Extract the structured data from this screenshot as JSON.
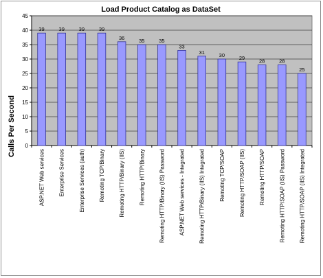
{
  "chart_data": {
    "type": "bar",
    "title": "Load Product Catalog as DataSet",
    "xlabel": "",
    "ylabel": "Calls Per Second",
    "ylim": [
      0,
      45
    ],
    "yticks": [
      0,
      5,
      10,
      15,
      20,
      25,
      30,
      35,
      40,
      45
    ],
    "grid": true,
    "legend": "none",
    "categories": [
      "ASP.NET Web services",
      "Enterprise Services",
      "Enterprise Services (auth)",
      "Remoting TCP/Binary",
      "Remoting HTTP/Binary (IIS)",
      "Remoting HTTP/Binary",
      "Remoting HTTP/Binary (IIS) Password",
      "ASP.NET Web services - Integrated",
      "Remoting HTTP/Binary (IIS) Integrated",
      "Remoting TCP/SOAP",
      "Remoting HTTP/SOAP (IIS)",
      "Remoting HTTP/SOAP",
      "Remoting HTTP/SOAP (IIS) Password",
      "Remoting HTTP/SOAP (IIS) Integrated"
    ],
    "values": [
      39,
      39,
      39,
      39,
      36,
      35,
      35,
      33,
      31,
      30,
      29,
      28,
      28,
      25
    ],
    "data_labels": [
      "39",
      "39",
      "39",
      "39",
      "36",
      "35",
      "35",
      "33",
      "31",
      "30",
      "29",
      "28",
      "28",
      "25"
    ],
    "colors": {
      "plot_background": "#c0c0c0",
      "bar_fill": "#9999ff",
      "bar_stroke": "#333399",
      "gridline": "#000000"
    }
  }
}
